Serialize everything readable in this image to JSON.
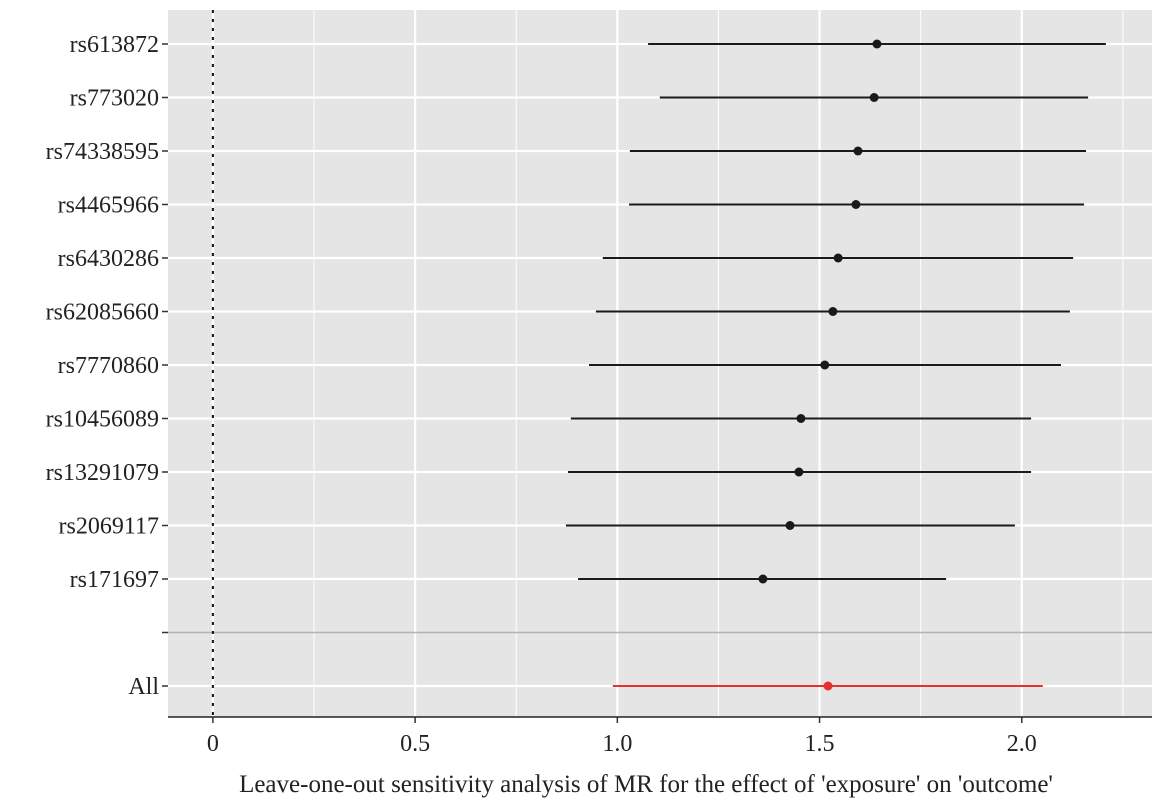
{
  "chart_data": {
    "type": "forest",
    "title": "",
    "xlabel": "Leave-one-out sensitivity analysis of MR for the effect of 'exposure' on 'outcome'",
    "ylabel": "",
    "xlim": [
      -0.111,
      2.322
    ],
    "x_ticks": [
      0,
      0.5,
      1.0,
      1.5,
      2.0
    ],
    "x_tick_labels": [
      "0",
      "0.5",
      "1.0",
      "1.5",
      "2.0"
    ],
    "reference_line": 0,
    "grid": true,
    "rows": [
      {
        "label": "rs613872",
        "estimate": 1.642,
        "lower": 1.076,
        "upper": 2.208
      },
      {
        "label": "rs773020",
        "estimate": 1.635,
        "lower": 1.105,
        "upper": 2.164
      },
      {
        "label": "rs74338595",
        "estimate": 1.595,
        "lower": 1.031,
        "upper": 2.159
      },
      {
        "label": "rs4465966",
        "estimate": 1.59,
        "lower": 1.029,
        "upper": 2.154
      },
      {
        "label": "rs6430286",
        "estimate": 1.546,
        "lower": 0.964,
        "upper": 2.127
      },
      {
        "label": "rs62085660",
        "estimate": 1.533,
        "lower": 0.947,
        "upper": 2.119
      },
      {
        "label": "rs7770860",
        "estimate": 1.513,
        "lower": 0.93,
        "upper": 2.097
      },
      {
        "label": "rs10456089",
        "estimate": 1.454,
        "lower": 0.885,
        "upper": 2.023
      },
      {
        "label": "rs13291079",
        "estimate": 1.449,
        "lower": 0.878,
        "upper": 2.023
      },
      {
        "label": "rs2069117",
        "estimate": 1.427,
        "lower": 0.873,
        "upper": 1.983
      },
      {
        "label": "rs171697",
        "estimate": 1.36,
        "lower": 0.903,
        "upper": 1.813
      },
      {
        "label": "",
        "blank": true
      },
      {
        "label": "All",
        "estimate": 1.521,
        "lower": 0.989,
        "upper": 2.052,
        "overall": true
      }
    ],
    "colors": {
      "snp": "#1a1a1a",
      "overall": "#e8302a",
      "panel": "#e5e5e5",
      "grid": "#ffffff",
      "separator": "#b3b3b3"
    }
  }
}
